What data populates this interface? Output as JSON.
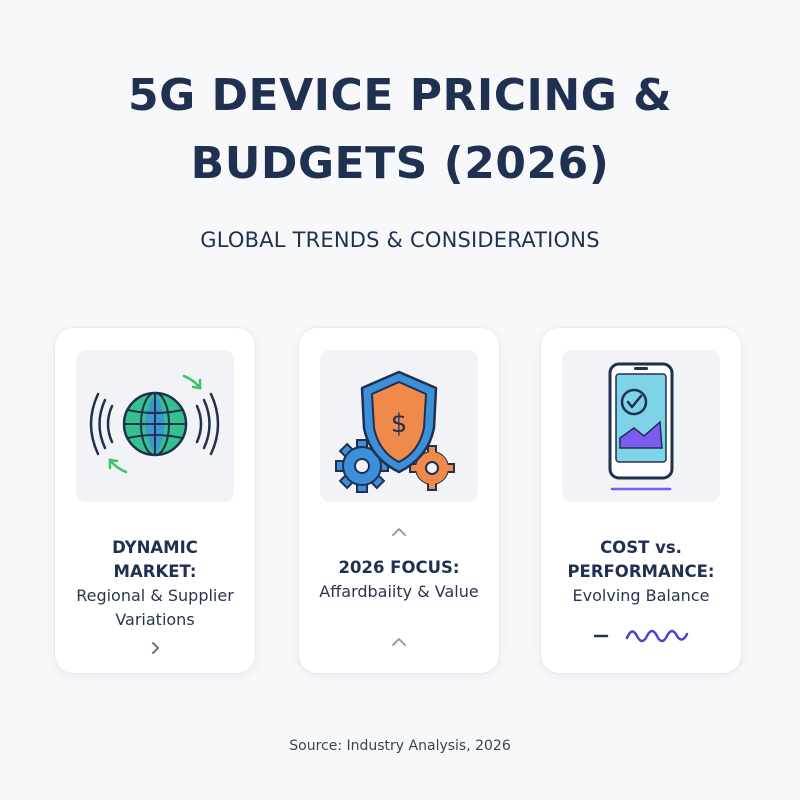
{
  "title_line1": "5G DEVICE PRICING &",
  "title_line2": "BUDGETS (2026)",
  "subtitle": "GLOBAL TRENDS & CONSIDERATIONS",
  "cards": [
    {
      "heading_line1": "DYNAMIC",
      "heading_line2": "MARKET:",
      "desc_line1": "Regional & Supplier",
      "desc_line2": "Variations",
      "icon": "globe-signal-icon"
    },
    {
      "heading_line1": "2026 FOCUS:",
      "desc_line1": "Affardbaiity & Value",
      "icon": "shield-dollar-gears-icon"
    },
    {
      "heading_line1": "COST vs.",
      "heading_line2": "PERFORMANCE:",
      "desc_line1": "Evolving Balance",
      "icon": "smartphone-check-chart-icon"
    }
  ],
  "source": "Source: Industry Analysis, 2026",
  "colors": {
    "navy": "#1f3050",
    "blue": "#3d8fd9",
    "orange": "#f08a4b",
    "green": "#37c46a",
    "purple": "#7b5cf0"
  }
}
